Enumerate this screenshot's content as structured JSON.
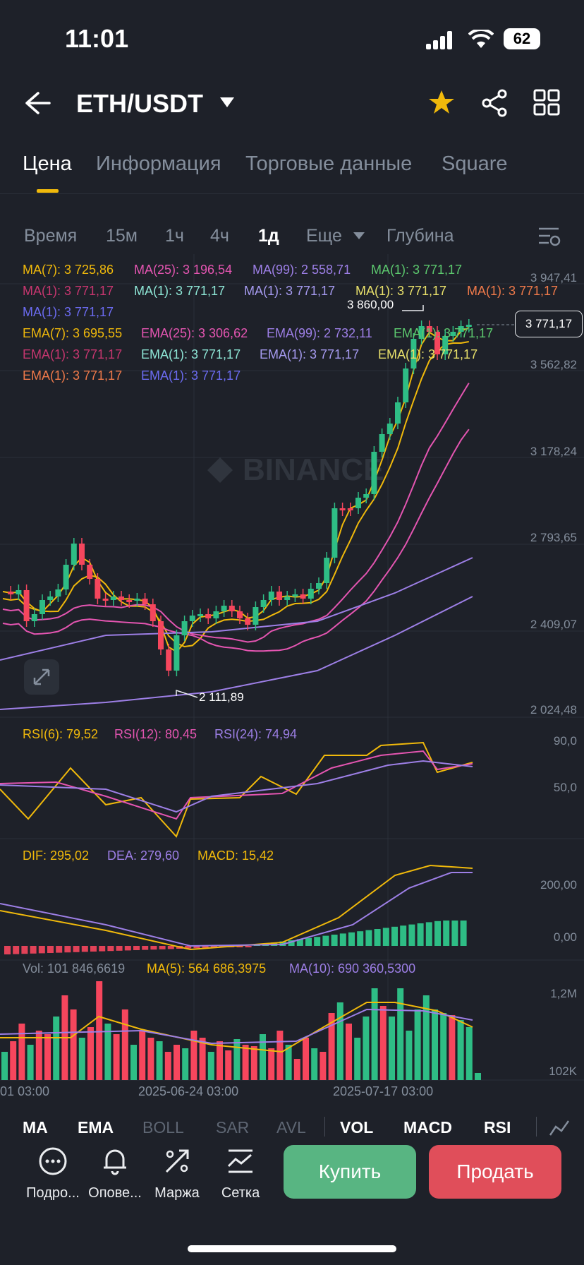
{
  "status_bar": {
    "time": "11:01",
    "battery": "62"
  },
  "header": {
    "pair": "ETH/USDT"
  },
  "tabs": [
    "Цена",
    "Информация",
    "Торговые данные",
    "Square"
  ],
  "timeframes": {
    "time": "Время",
    "m15": "15м",
    "h1": "1ч",
    "h4": "4ч",
    "d1": "1д",
    "more": "Еще",
    "depth": "Глубина"
  },
  "ma_legend": {
    "row1": [
      "MA(7): 3 725,86",
      "MA(25): 3 196,54",
      "MA(99): 2 558,71",
      "MA(1): 3 771,17"
    ],
    "row2": [
      "MA(1): 3 771,17",
      "MA(1): 3 771,17",
      "MA(1): 3 771,17",
      "MA(1): 3 771,17",
      "MA(1): 3 771,17"
    ],
    "row3": [
      "MA(1): 3 771,17"
    ],
    "row4": [
      "EMA(7): 3 695,55",
      "EMA(25): 3 306,62",
      "EMA(99): 2 732,11",
      "EMA(1): 3 771,17"
    ],
    "row5": [
      "EMA(1): 3 771,17",
      "EMA(1): 3 771,17",
      "EMA(1): 3 771,17",
      "EMA(1): 3 771,17"
    ],
    "row6": [
      "EMA(1): 3 771,17",
      "EMA(1): 3 771,17"
    ]
  },
  "price_axis": [
    "3 947,41",
    "3 562,82",
    "3 178,24",
    "2 793,65",
    "2 409,07",
    "2 024,48"
  ],
  "current_price": "3 771,17",
  "high_label": "3 860,00",
  "low_label": "2 111,89",
  "watermark": "BINANCE",
  "rsi": {
    "rsi6": "RSI(6): 79,52",
    "rsi12": "RSI(12): 80,45",
    "rsi24": "RSI(24): 74,94",
    "axis": [
      "90,0",
      "50,0"
    ]
  },
  "macd": {
    "dif": "DIF: 295,02",
    "dea": "DEA: 279,60",
    "macd": "MACD: 15,42",
    "axis": [
      "200,00",
      "0,00"
    ]
  },
  "volume": {
    "vol": "Vol: 101 846,6619",
    "ma5": "MA(5): 564 686,3975",
    "ma10": "MA(10): 690 360,5300",
    "axis": [
      "1,2M",
      "102K"
    ]
  },
  "dates": [
    "01 03:00",
    "2025-06-24 03:00",
    "2025-07-17 03:00"
  ],
  "indicator_tabs": [
    "MA",
    "EMA",
    "BOLL",
    "SAR",
    "AVL",
    "VOL",
    "MACD",
    "RSI"
  ],
  "toolbar": {
    "details": "Подро...",
    "alerts": "Опове...",
    "margin": "Маржа",
    "grid": "Сетка"
  },
  "buy_label": "Купить",
  "sell_label": "Продать",
  "colors": {
    "up": "#2ebd85",
    "down": "#f6465d",
    "accent": "#f0b90b",
    "buy": "#58b582",
    "sell": "#e04e5a"
  }
}
